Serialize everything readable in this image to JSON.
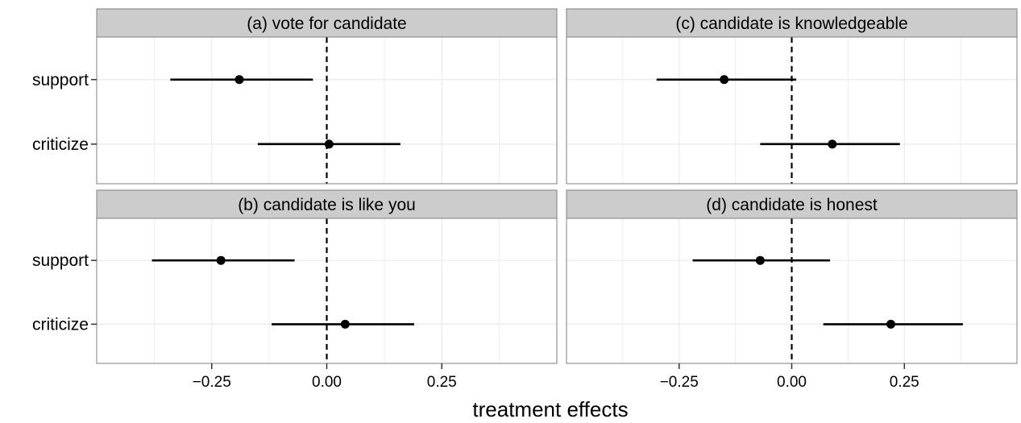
{
  "chart_data": {
    "type": "scatter",
    "variant": "coefficient-plot-with-confidence-intervals",
    "xlabel": "treatment effects",
    "ylabel": "",
    "xlim": [
      -0.5,
      0.5
    ],
    "x_ticks": [
      -0.25,
      0.0,
      0.25
    ],
    "x_tick_labels": [
      "−0.25",
      "0.00",
      "0.25"
    ],
    "reference_line": {
      "x": 0,
      "style": "dashed"
    },
    "categories": [
      "support",
      "criticize"
    ],
    "grid": true,
    "legend": "none",
    "colors": {
      "strip_background": "#cccccc",
      "panel_border": "#7f7f7f",
      "grid": "#ebebeb",
      "mark": "#000000"
    },
    "panels": [
      {
        "title": "(a) vote for candidate",
        "points": [
          {
            "category": "support",
            "estimate": -0.19,
            "lower": -0.34,
            "upper": -0.03
          },
          {
            "category": "criticize",
            "estimate": 0.005,
            "lower": -0.15,
            "upper": 0.16
          }
        ]
      },
      {
        "title": "(c) candidate is knowledgeable",
        "points": [
          {
            "category": "support",
            "estimate": -0.15,
            "lower": -0.3,
            "upper": 0.01
          },
          {
            "category": "criticize",
            "estimate": 0.09,
            "lower": -0.07,
            "upper": 0.24
          }
        ]
      },
      {
        "title": "(b) candidate is like you",
        "points": [
          {
            "category": "support",
            "estimate": -0.23,
            "lower": -0.38,
            "upper": -0.07
          },
          {
            "category": "criticize",
            "estimate": 0.04,
            "lower": -0.12,
            "upper": 0.19
          }
        ]
      },
      {
        "title": "(d) candidate is honest",
        "points": [
          {
            "category": "support",
            "estimate": -0.07,
            "lower": -0.22,
            "upper": 0.085
          },
          {
            "category": "criticize",
            "estimate": 0.22,
            "lower": 0.07,
            "upper": 0.38
          }
        ]
      }
    ]
  }
}
